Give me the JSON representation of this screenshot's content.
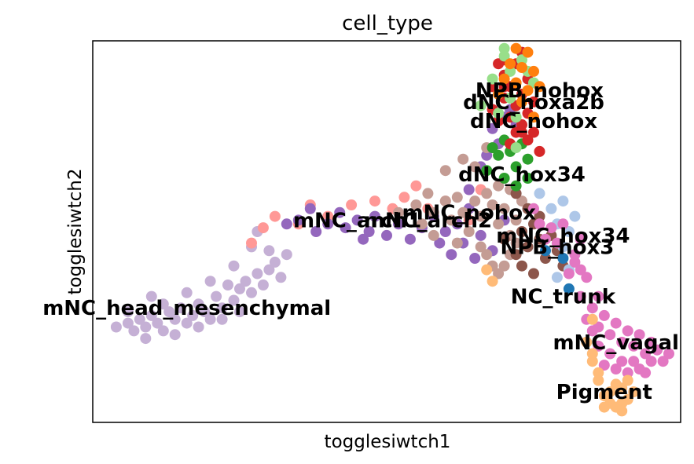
{
  "chart_data": {
    "type": "scatter",
    "title": "cell_type",
    "xlabel": "togglesiwtch1",
    "ylabel": "togglesiwtch2",
    "xlim": [
      0,
      100
    ],
    "ylim": [
      0,
      100
    ],
    "grid": false,
    "legend": "on data",
    "colors": {
      "NPB_nohox": "#ff7f0e",
      "dNC_hoxa2b": "#98df8a",
      "dNC_nohox": "#d62728",
      "dNC_hox34": "#2ca02c",
      "mNC_nohox": "#c49c94",
      "mNC_arch1": "#9467bd",
      "mNC_arch2": "#ff9896",
      "mNC_hox34": "#8c564b",
      "NPB_hox3": "#aec7e8",
      "NC_trunk": "#1f77b4",
      "mNC_vagal": "#e377c2",
      "Pigment": "#ffbb78",
      "mNC_head_mesenchymal": "#c5b0d5"
    },
    "series": [
      {
        "name": "mNC_head_mesenchymal",
        "points": [
          [
            4,
            25
          ],
          [
            6,
            26
          ],
          [
            7,
            24
          ],
          [
            8,
            27
          ],
          [
            9,
            25
          ],
          [
            10,
            28
          ],
          [
            11,
            26
          ],
          [
            12,
            24
          ],
          [
            13,
            29
          ],
          [
            14,
            27
          ],
          [
            15,
            30
          ],
          [
            16,
            26
          ],
          [
            17,
            28
          ],
          [
            18,
            31
          ],
          [
            19,
            29
          ],
          [
            20,
            27
          ],
          [
            21,
            33
          ],
          [
            22,
            30
          ],
          [
            23,
            36
          ],
          [
            24,
            32
          ],
          [
            25,
            35
          ],
          [
            26,
            37
          ],
          [
            27,
            34
          ],
          [
            28,
            39
          ],
          [
            29,
            36
          ],
          [
            30,
            40
          ],
          [
            31,
            42
          ],
          [
            32,
            38
          ],
          [
            12,
            31
          ],
          [
            16,
            34
          ],
          [
            20,
            37
          ],
          [
            27,
            46
          ],
          [
            9,
            22
          ],
          [
            14,
            23
          ],
          [
            18,
            25
          ],
          [
            22,
            27
          ],
          [
            25,
            29
          ],
          [
            6,
            29
          ],
          [
            10,
            33
          ],
          [
            24,
            41
          ],
          [
            30,
            45
          ],
          [
            28,
            50
          ],
          [
            33,
            44
          ]
        ]
      },
      {
        "name": "mNC_arch2",
        "points": [
          [
            27,
            47
          ],
          [
            29,
            51
          ],
          [
            31,
            54
          ],
          [
            37,
            57
          ],
          [
            40,
            54
          ],
          [
            44,
            57
          ],
          [
            53,
            59
          ],
          [
            51,
            56
          ],
          [
            66,
            61
          ],
          [
            64,
            53
          ],
          [
            57,
            56
          ],
          [
            35,
            52
          ],
          [
            48,
            58
          ],
          [
            55,
            62
          ],
          [
            60,
            58
          ]
        ]
      },
      {
        "name": "mNC_arch1",
        "points": [
          [
            35,
            53
          ],
          [
            37,
            56
          ],
          [
            38,
            50
          ],
          [
            40,
            52
          ],
          [
            42,
            55
          ],
          [
            43,
            51
          ],
          [
            45,
            53
          ],
          [
            47,
            50
          ],
          [
            48,
            54
          ],
          [
            50,
            49
          ],
          [
            52,
            52
          ],
          [
            54,
            48
          ],
          [
            56,
            51
          ],
          [
            58,
            54
          ],
          [
            59,
            47
          ],
          [
            60,
            50
          ],
          [
            61,
            44
          ],
          [
            62,
            52
          ],
          [
            63,
            47
          ],
          [
            64,
            56
          ],
          [
            64,
            61
          ],
          [
            65,
            43
          ],
          [
            66,
            49
          ],
          [
            68,
            45
          ],
          [
            67,
            70
          ],
          [
            68,
            77
          ],
          [
            70,
            80
          ],
          [
            71,
            82
          ],
          [
            72,
            78
          ],
          [
            66,
            67
          ],
          [
            69,
            73
          ],
          [
            33,
            52
          ],
          [
            46,
            48
          ],
          [
            70,
            53
          ]
        ]
      },
      {
        "name": "mNC_nohox",
        "points": [
          [
            55,
            57
          ],
          [
            57,
            60
          ],
          [
            58,
            55
          ],
          [
            60,
            58
          ],
          [
            61,
            53
          ],
          [
            62,
            59
          ],
          [
            63,
            55
          ],
          [
            64,
            50
          ],
          [
            65,
            58
          ],
          [
            66,
            54
          ],
          [
            67,
            60
          ],
          [
            68,
            57
          ],
          [
            69,
            52
          ],
          [
            70,
            56
          ],
          [
            71,
            49
          ],
          [
            72,
            53
          ],
          [
            73,
            58
          ],
          [
            66,
            46
          ],
          [
            68,
            41
          ],
          [
            69,
            39
          ],
          [
            71,
            44
          ],
          [
            72,
            47
          ],
          [
            70,
            41
          ],
          [
            67,
            44
          ],
          [
            52,
            55
          ],
          [
            56,
            52
          ],
          [
            58,
            49
          ],
          [
            62,
            47
          ],
          [
            60,
            66
          ],
          [
            63,
            69
          ],
          [
            65,
            67
          ],
          [
            67,
            72
          ],
          [
            69,
            62
          ],
          [
            71,
            61
          ]
        ]
      },
      {
        "name": "mNC_hox34",
        "points": [
          [
            70,
            48
          ],
          [
            72,
            44
          ],
          [
            73,
            50
          ],
          [
            74,
            46
          ],
          [
            75,
            52
          ],
          [
            76,
            48
          ],
          [
            77,
            43
          ],
          [
            78,
            49
          ],
          [
            79,
            45
          ],
          [
            80,
            41
          ],
          [
            73,
            41
          ],
          [
            75,
            39
          ],
          [
            72,
            60
          ],
          [
            74,
            56
          ],
          [
            76,
            54
          ]
        ]
      },
      {
        "name": "NPB_hox3",
        "points": [
          [
            76,
            60
          ],
          [
            78,
            56
          ],
          [
            79,
            52
          ],
          [
            80,
            58
          ],
          [
            81,
            50
          ],
          [
            82,
            54
          ],
          [
            80,
            46
          ],
          [
            79,
            38
          ],
          [
            81,
            40
          ]
        ]
      },
      {
        "name": "NC_trunk",
        "points": [
          [
            77,
            45
          ],
          [
            80,
            43
          ],
          [
            81,
            35
          ]
        ]
      },
      {
        "name": "dNC_hox34",
        "points": [
          [
            67,
            66
          ],
          [
            69,
            70
          ],
          [
            70,
            64
          ],
          [
            71,
            71
          ],
          [
            72,
            67
          ],
          [
            73,
            73
          ],
          [
            74,
            69
          ],
          [
            72,
            62
          ],
          [
            70,
            74
          ],
          [
            74,
            64
          ],
          [
            68,
            72
          ]
        ]
      },
      {
        "name": "dNC_nohox",
        "points": [
          [
            68,
            82
          ],
          [
            69,
            79
          ],
          [
            70,
            85
          ],
          [
            71,
            80
          ],
          [
            72,
            83
          ],
          [
            73,
            78
          ],
          [
            74,
            81
          ],
          [
            75,
            76
          ],
          [
            73,
            86
          ],
          [
            71,
            88
          ],
          [
            70,
            91
          ],
          [
            72,
            94
          ],
          [
            73,
            97
          ],
          [
            74,
            90
          ],
          [
            69,
            94
          ],
          [
            70,
            88
          ],
          [
            75,
            84
          ],
          [
            76,
            71
          ],
          [
            74,
            74
          ],
          [
            72,
            76
          ],
          [
            71,
            73
          ],
          [
            68,
            88
          ],
          [
            70,
            95
          ],
          [
            73,
            76
          ]
        ]
      },
      {
        "name": "dNC_hoxa2b",
        "points": [
          [
            69,
            81
          ],
          [
            71,
            85
          ],
          [
            72,
            80
          ],
          [
            74,
            92
          ],
          [
            70,
            96
          ],
          [
            75,
            89
          ],
          [
            73,
            95
          ],
          [
            66,
            83
          ],
          [
            68,
            90
          ],
          [
            71,
            92
          ],
          [
            72,
            72
          ],
          [
            70,
            98
          ]
        ]
      },
      {
        "name": "NPB_nohox",
        "points": [
          [
            70,
            90
          ],
          [
            72,
            89
          ],
          [
            73,
            93
          ],
          [
            74,
            87
          ],
          [
            75,
            92
          ],
          [
            76,
            88
          ],
          [
            72,
            98
          ],
          [
            71,
            94
          ],
          [
            74,
            97
          ],
          [
            69,
            86
          ],
          [
            75,
            80
          ],
          [
            73,
            84
          ]
        ]
      },
      {
        "name": "mNC_vagal",
        "points": [
          [
            75,
            56
          ],
          [
            76,
            52
          ],
          [
            77,
            48
          ],
          [
            78,
            51
          ],
          [
            79,
            47
          ],
          [
            80,
            52
          ],
          [
            82,
            44
          ],
          [
            83,
            48
          ],
          [
            81,
            39
          ],
          [
            82,
            42
          ],
          [
            84,
            38
          ],
          [
            83,
            33
          ],
          [
            85,
            30
          ],
          [
            86,
            25
          ],
          [
            87,
            28
          ],
          [
            88,
            23
          ],
          [
            89,
            26
          ],
          [
            90,
            21
          ],
          [
            91,
            24
          ],
          [
            92,
            20
          ],
          [
            93,
            23
          ],
          [
            94,
            18
          ],
          [
            95,
            21
          ],
          [
            96,
            19
          ],
          [
            97,
            16
          ],
          [
            86,
            20
          ],
          [
            88,
            18
          ],
          [
            90,
            16
          ],
          [
            92,
            16
          ],
          [
            89,
            14
          ],
          [
            91,
            13
          ],
          [
            93,
            14
          ],
          [
            85,
            24
          ],
          [
            84,
            27
          ],
          [
            95,
            16
          ],
          [
            98,
            18
          ],
          [
            94,
            13
          ],
          [
            87,
            15
          ],
          [
            83,
            40
          ],
          [
            86,
            33
          ]
        ]
      },
      {
        "name": "Pigment",
        "points": [
          [
            67,
            40
          ],
          [
            68,
            37
          ],
          [
            85,
            27
          ],
          [
            84,
            21
          ],
          [
            85,
            16
          ],
          [
            86,
            11
          ],
          [
            87,
            7
          ],
          [
            88,
            5
          ],
          [
            89,
            4
          ],
          [
            90,
            5
          ],
          [
            91,
            6
          ],
          [
            92,
            8
          ],
          [
            90,
            9
          ],
          [
            88,
            8
          ],
          [
            86,
            13
          ],
          [
            85,
            18
          ],
          [
            89,
            10
          ],
          [
            91,
            11
          ],
          [
            87,
            4
          ],
          [
            90,
            3
          ]
        ]
      }
    ],
    "annotations": [
      {
        "text": "NPB_nohox",
        "x": 76,
        "y": 87
      },
      {
        "text": "dNC_hoxa2b",
        "x": 75,
        "y": 84
      },
      {
        "text": "dNC_nohox",
        "x": 75,
        "y": 79
      },
      {
        "text": "dNC_hox34",
        "x": 73,
        "y": 65
      },
      {
        "text": "mNC_nohox",
        "x": 64,
        "y": 55
      },
      {
        "text": "mNC_arch2",
        "x": 57,
        "y": 53
      },
      {
        "text": "mNC_arch1",
        "x": 45,
        "y": 53
      },
      {
        "text": "mNC_hox34",
        "x": 80,
        "y": 49
      },
      {
        "text": "NPB_hox3",
        "x": 79,
        "y": 46
      },
      {
        "text": "NC_trunk",
        "x": 80,
        "y": 33
      },
      {
        "text": "mNC_head_mesenchymal",
        "x": 16,
        "y": 30
      },
      {
        "text": "mNC_vagal",
        "x": 89,
        "y": 21
      },
      {
        "text": "Pigment",
        "x": 87,
        "y": 8
      }
    ]
  }
}
